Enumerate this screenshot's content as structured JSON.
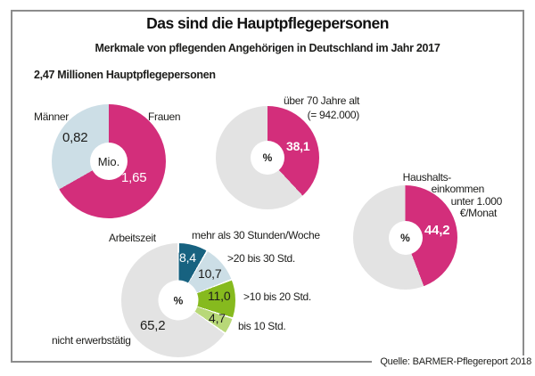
{
  "header": {
    "title": "Das sind die Hauptpflegepersonen",
    "subtitle": "Merkmale von pflegenden Angehörigen in Deutschland im Jahr 2017",
    "lead": "2,47 Millionen Hauptpflegepersonen"
  },
  "source": "Quelle: BARMER-Pflegereport 2018",
  "palette": {
    "pink": "#d32e7b",
    "light_blue": "#ccdee6",
    "teal": "#176280",
    "green": "#86ba1e",
    "light_green": "#b8d878",
    "gray": "#e3e3e3",
    "text": "#1d1d1b",
    "frame_border": "#8c8c8c"
  },
  "chart_data": [
    {
      "id": "gender",
      "type": "pie",
      "title": "2,47 Millionen Hauptpflegepersonen",
      "center_label": "Mio.",
      "total": 2.47,
      "start_angle": "top",
      "direction": "clockwise",
      "slices": [
        {
          "label": "Frauen",
          "value": 1.65,
          "display": "1,65",
          "color": "#d32e7b"
        },
        {
          "label": "Männer",
          "value": 0.82,
          "display": "0,82",
          "color": "#ccdee6"
        }
      ]
    },
    {
      "id": "age-over-70",
      "type": "pie",
      "center_label": "%",
      "label_lines": [
        "über 70 Jahre alt",
        "(= 942.000)"
      ],
      "total": 100,
      "start_angle": "top",
      "direction": "clockwise",
      "slices": [
        {
          "label": "über 70 Jahre alt (= 942.000)",
          "value": 38.1,
          "display": "38,1",
          "color": "#d32e7b"
        },
        {
          "label": "",
          "value": 61.9,
          "display": "",
          "color": "#e3e3e3"
        }
      ]
    },
    {
      "id": "household-income",
      "type": "pie",
      "center_label": "%",
      "label_lines": [
        "Haushalts-",
        "einkommen",
        "unter 1.000",
        "€/Monat"
      ],
      "total": 100,
      "start_angle": "top",
      "direction": "clockwise",
      "slices": [
        {
          "label": "Haushaltseinkommen unter 1.000 €/Monat",
          "value": 44.2,
          "display": "44,2",
          "color": "#d32e7b"
        },
        {
          "label": "",
          "value": 55.8,
          "display": "",
          "color": "#e3e3e3"
        }
      ]
    },
    {
      "id": "arbeitszeit",
      "type": "pie",
      "title": "Arbeitszeit",
      "center_label": "%",
      "total": 100,
      "start_angle": "top",
      "direction": "clockwise",
      "gap_deg": 1.6,
      "slices": [
        {
          "label": "mehr als 30 Stunden/Woche",
          "value": 8.4,
          "display": "8,4",
          "color": "#176280"
        },
        {
          "label": ">20 bis 30 Std.",
          "value": 10.7,
          "display": "10,7",
          "color": "#ccdee6"
        },
        {
          "label": ">10 bis 20 Std.",
          "value": 11.0,
          "display": "11,0",
          "color": "#86ba1e"
        },
        {
          "label": "bis 10 Std.",
          "value": 4.7,
          "display": "4,7",
          "color": "#b8d878"
        },
        {
          "label": "nicht erwerbstätig",
          "value": 65.2,
          "display": "65,2",
          "color": "#e3e3e3"
        }
      ]
    }
  ]
}
